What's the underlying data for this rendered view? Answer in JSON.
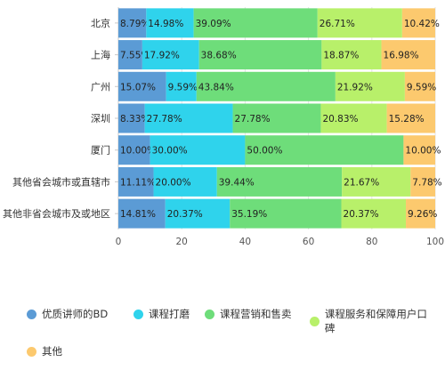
{
  "chart_data": {
    "type": "bar",
    "orientation": "horizontal",
    "stacked": true,
    "categories": [
      "北京",
      "上海",
      "广州",
      "深圳",
      "厦门",
      "其他省会城市或直辖市",
      "其他非省会城市及或地区"
    ],
    "series": [
      {
        "name": "优质讲师的BD",
        "color": "#5b9bd5",
        "values": [
          8.79,
          7.55,
          15.07,
          8.33,
          10.0,
          11.11,
          14.81
        ],
        "labels": [
          "8.79%",
          "7.55%",
          "15.07%",
          "8.33%",
          "10.00%",
          "11.11%",
          "14.81%"
        ]
      },
      {
        "name": "课程打磨",
        "color": "#2fd3ec",
        "values": [
          14.98,
          17.92,
          9.59,
          27.78,
          30.0,
          20.0,
          20.37
        ],
        "labels": [
          "14.98%",
          "17.92%",
          "9.59%",
          "27.78%",
          "30.00%",
          "20.00%",
          "20.37%"
        ]
      },
      {
        "name": "课程营销和售卖",
        "color": "#6edd7a",
        "values": [
          39.09,
          38.68,
          43.84,
          27.78,
          50.0,
          39.44,
          35.19
        ],
        "labels": [
          "39.09%",
          "38.68%",
          "43.84%",
          "27.78%",
          "50.00%",
          "39.44%",
          "35.19%"
        ]
      },
      {
        "name": "课程服务和保障用户口碑",
        "color": "#b8f06a",
        "values": [
          26.71,
          18.87,
          21.92,
          20.83,
          0.0,
          21.67,
          20.37
        ],
        "labels": [
          "26.71%",
          "18.87%",
          "21.92%",
          "20.83%",
          "",
          "21.67%",
          "20.37%"
        ]
      },
      {
        "name": "其他",
        "color": "#fcc96e",
        "values": [
          10.42,
          16.98,
          9.59,
          15.28,
          10.0,
          7.78,
          9.26
        ],
        "labels": [
          "10.42%",
          "16.98%",
          "9.59%",
          "15.28%",
          "10.00%",
          "7.78%",
          "9.26%"
        ]
      }
    ],
    "xlim": [
      0,
      100
    ],
    "xticks": [
      0,
      20,
      40,
      60,
      80,
      100
    ],
    "grid": true,
    "legend": "bottom"
  }
}
